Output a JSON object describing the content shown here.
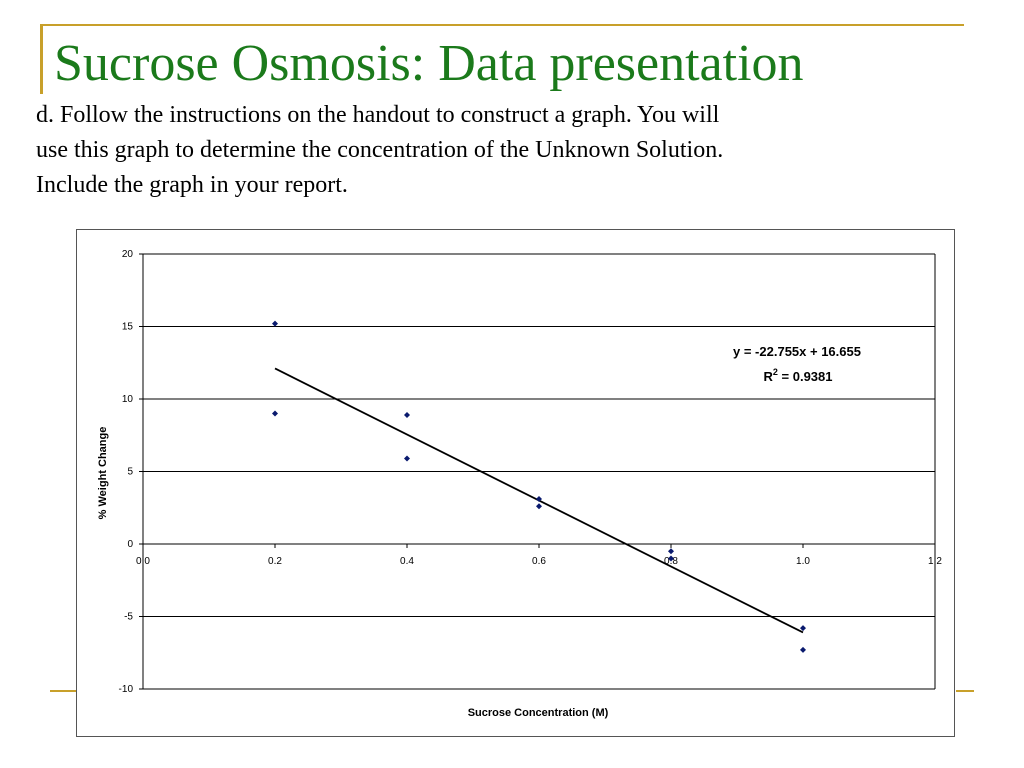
{
  "slide": {
    "title": "Sucrose Osmosis: Data presentation",
    "body_lines": [
      "d. Follow the instructions on the handout to construct a graph.  You will",
      "use this graph to determine the concentration of the Unknown Solution.",
      "Include the graph in your report."
    ],
    "accent_color": "#c8a02a",
    "title_color": "#1b7a1b"
  },
  "chart_data": {
    "type": "scatter",
    "title": "",
    "xlabel": "Sucrose Concentration (M)",
    "ylabel": "% Weight Change",
    "xlim": [
      0,
      1.2
    ],
    "ylim": [
      -10,
      20
    ],
    "x_ticks": [
      "0.0",
      "0.2",
      "0.4",
      "0.6",
      "0.8",
      "1.0",
      "1.2"
    ],
    "y_ticks": [
      "20",
      "15",
      "10",
      "5",
      "0",
      "-5",
      "-10"
    ],
    "grid": "horizontal",
    "legend": "none",
    "series": [
      {
        "points": [
          {
            "x": 0.2,
            "y": 15.2
          },
          {
            "x": 0.2,
            "y": 9.0
          },
          {
            "x": 0.4,
            "y": 8.9
          },
          {
            "x": 0.4,
            "y": 5.9
          },
          {
            "x": 0.6,
            "y": 3.1
          },
          {
            "x": 0.6,
            "y": 2.6
          },
          {
            "x": 0.8,
            "y": -0.5
          },
          {
            "x": 0.8,
            "y": -1.0
          },
          {
            "x": 1.0,
            "y": -5.8
          },
          {
            "x": 1.0,
            "y": -7.3
          }
        ],
        "color": "#0a1a6e"
      }
    ],
    "trendline": {
      "slope": -22.755,
      "intercept": 16.655,
      "x_range": [
        0.2,
        1.0
      ],
      "equation": "y = -22.755x + 16.655",
      "r_label": "R",
      "r_sup": "2",
      "r_value": " = 0.9381"
    }
  }
}
